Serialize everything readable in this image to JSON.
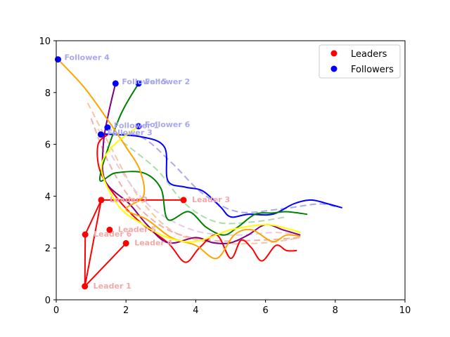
{
  "chart_data": {
    "type": "scatter",
    "title": "",
    "xlabel": "",
    "ylabel": "",
    "xlim": [
      0,
      10
    ],
    "ylim": [
      0,
      10
    ],
    "xticks": [
      0,
      2,
      4,
      6,
      8,
      10
    ],
    "yticks": [
      0,
      2,
      4,
      6,
      8,
      10
    ],
    "grid": false,
    "legend_position": "top-right",
    "legend": [
      {
        "label": "Leaders",
        "color": "#ff0000"
      },
      {
        "label": "Followers",
        "color": "#0000ff"
      }
    ],
    "leaders": [
      {
        "name": "Leader 1",
        "x": 0.82,
        "y": 0.52
      },
      {
        "name": "Leader 2",
        "x": 1.29,
        "y": 3.85
      },
      {
        "name": "Leader 3",
        "x": 3.65,
        "y": 3.85
      },
      {
        "name": "Leader 4",
        "x": 2.0,
        "y": 2.18
      },
      {
        "name": "Leader 5",
        "x": 1.53,
        "y": 2.7
      },
      {
        "name": "Leader 6",
        "x": 0.83,
        "y": 2.52
      }
    ],
    "leader_polygon": [
      [
        0.82,
        0.52
      ],
      [
        0.83,
        2.52
      ],
      [
        1.29,
        3.85
      ],
      [
        3.65,
        3.85
      ],
      [
        1.29,
        3.85
      ],
      [
        0.82,
        0.52
      ],
      [
        2.0,
        2.18
      ]
    ],
    "followers": [
      {
        "name": "Follower 1",
        "x": 1.47,
        "y": 6.65
      },
      {
        "name": "Follower 2",
        "x": 2.36,
        "y": 8.35
      },
      {
        "name": "Follower 3",
        "x": 1.28,
        "y": 6.38
      },
      {
        "name": "Follower 4",
        "x": 0.05,
        "y": 9.28
      },
      {
        "name": "Follower 5",
        "x": 1.7,
        "y": 8.35
      },
      {
        "name": "Follower 6",
        "x": 2.36,
        "y": 6.7
      }
    ],
    "trajectories": [
      {
        "color": "#ff0000",
        "points": [
          [
            1.5,
            6.4
          ],
          [
            1.2,
            6.0
          ],
          [
            1.25,
            5.0
          ],
          [
            1.7,
            4.0
          ],
          [
            2.4,
            3.0
          ],
          [
            3.2,
            2.2
          ],
          [
            3.7,
            1.45
          ],
          [
            4.1,
            2.0
          ],
          [
            4.6,
            2.5
          ],
          [
            5.0,
            1.6
          ],
          [
            5.3,
            2.3
          ],
          [
            5.6,
            2.0
          ],
          [
            5.9,
            1.5
          ],
          [
            6.3,
            2.1
          ],
          [
            6.6,
            1.9
          ],
          [
            6.9,
            1.9
          ]
        ]
      },
      {
        "color": "#0000ff",
        "points": [
          [
            1.3,
            6.4
          ],
          [
            2.4,
            6.3
          ],
          [
            3.1,
            5.9
          ],
          [
            3.2,
            4.6
          ],
          [
            3.7,
            4.35
          ],
          [
            4.2,
            4.2
          ],
          [
            4.7,
            3.6
          ],
          [
            5.0,
            3.2
          ],
          [
            5.5,
            3.3
          ],
          [
            6.2,
            3.3
          ],
          [
            6.8,
            3.7
          ],
          [
            7.3,
            3.85
          ],
          [
            7.8,
            3.7
          ],
          [
            8.2,
            3.55
          ]
        ]
      },
      {
        "color": "#008000",
        "points": [
          [
            2.36,
            8.35
          ],
          [
            1.8,
            7.0
          ],
          [
            1.25,
            4.7
          ],
          [
            1.7,
            4.9
          ],
          [
            2.5,
            4.9
          ],
          [
            3.0,
            4.3
          ],
          [
            3.2,
            3.1
          ],
          [
            3.8,
            3.4
          ],
          [
            4.3,
            2.8
          ],
          [
            4.8,
            2.5
          ],
          [
            5.2,
            2.8
          ],
          [
            5.7,
            3.3
          ],
          [
            6.2,
            3.35
          ],
          [
            6.6,
            3.4
          ],
          [
            7.2,
            3.3
          ]
        ]
      },
      {
        "color": "#800080",
        "points": [
          [
            1.7,
            8.35
          ],
          [
            1.5,
            7.2
          ],
          [
            1.35,
            6.0
          ],
          [
            1.4,
            4.6
          ],
          [
            2.1,
            3.7
          ],
          [
            2.6,
            2.9
          ],
          [
            3.2,
            2.2
          ],
          [
            4.0,
            2.4
          ],
          [
            4.5,
            2.2
          ],
          [
            5.0,
            2.2
          ],
          [
            5.5,
            2.5
          ],
          [
            6.0,
            2.9
          ],
          [
            6.5,
            2.7
          ],
          [
            7.0,
            2.5
          ]
        ]
      },
      {
        "color": "#ffa500",
        "points": [
          [
            0.05,
            9.28
          ],
          [
            0.8,
            8.2
          ],
          [
            1.5,
            6.9
          ],
          [
            2.0,
            5.9
          ],
          [
            2.4,
            5.0
          ],
          [
            2.5,
            4.0
          ],
          [
            2.0,
            3.5
          ],
          [
            2.6,
            3.1
          ],
          [
            3.3,
            2.4
          ],
          [
            4.0,
            2.1
          ],
          [
            4.6,
            1.6
          ],
          [
            5.1,
            2.5
          ],
          [
            5.6,
            2.7
          ],
          [
            6.2,
            2.25
          ],
          [
            6.6,
            2.5
          ],
          [
            7.0,
            2.45
          ]
        ]
      },
      {
        "color": "#ffff00",
        "points": [
          [
            2.36,
            6.7
          ],
          [
            1.6,
            5.9
          ],
          [
            1.3,
            5.0
          ],
          [
            1.8,
            3.6
          ],
          [
            2.5,
            2.9
          ],
          [
            3.2,
            2.4
          ],
          [
            4.0,
            2.25
          ],
          [
            5.0,
            2.7
          ],
          [
            6.0,
            2.9
          ],
          [
            6.6,
            2.75
          ],
          [
            7.0,
            2.6
          ]
        ]
      }
    ],
    "dashed_trajectories": [
      {
        "color": "#aaaaee",
        "points": [
          [
            1.3,
            6.4
          ],
          [
            2.4,
            6.3
          ],
          [
            3.3,
            5.3
          ],
          [
            4.2,
            4.1
          ],
          [
            5.2,
            3.4
          ],
          [
            6.4,
            3.5
          ],
          [
            7.5,
            3.7
          ],
          [
            8.0,
            3.6
          ]
        ]
      },
      {
        "color": "#aaddaa",
        "points": [
          [
            1.9,
            6.1
          ],
          [
            2.9,
            5.0
          ],
          [
            3.7,
            3.7
          ],
          [
            4.6,
            3.0
          ],
          [
            5.6,
            3.0
          ],
          [
            6.6,
            3.2
          ]
        ]
      },
      {
        "color": "#f5c8a0",
        "points": [
          [
            0.9,
            7.6
          ],
          [
            1.6,
            5.8
          ],
          [
            2.4,
            3.9
          ],
          [
            3.4,
            2.6
          ],
          [
            4.6,
            2.2
          ],
          [
            6.0,
            2.2
          ],
          [
            7.0,
            2.4
          ]
        ]
      },
      {
        "color": "#f0b0b0",
        "points": [
          [
            1.0,
            7.0
          ],
          [
            1.5,
            5.3
          ],
          [
            2.2,
            3.8
          ],
          [
            3.2,
            2.7
          ],
          [
            4.4,
            2.3
          ],
          [
            5.8,
            2.3
          ],
          [
            7.0,
            2.4
          ]
        ]
      },
      {
        "color": "#e6cce6",
        "points": [
          [
            1.2,
            6.6
          ],
          [
            1.8,
            5.1
          ],
          [
            2.7,
            3.6
          ],
          [
            3.9,
            2.7
          ],
          [
            5.1,
            2.5
          ],
          [
            6.3,
            2.6
          ],
          [
            7.0,
            2.5
          ]
        ]
      }
    ]
  }
}
